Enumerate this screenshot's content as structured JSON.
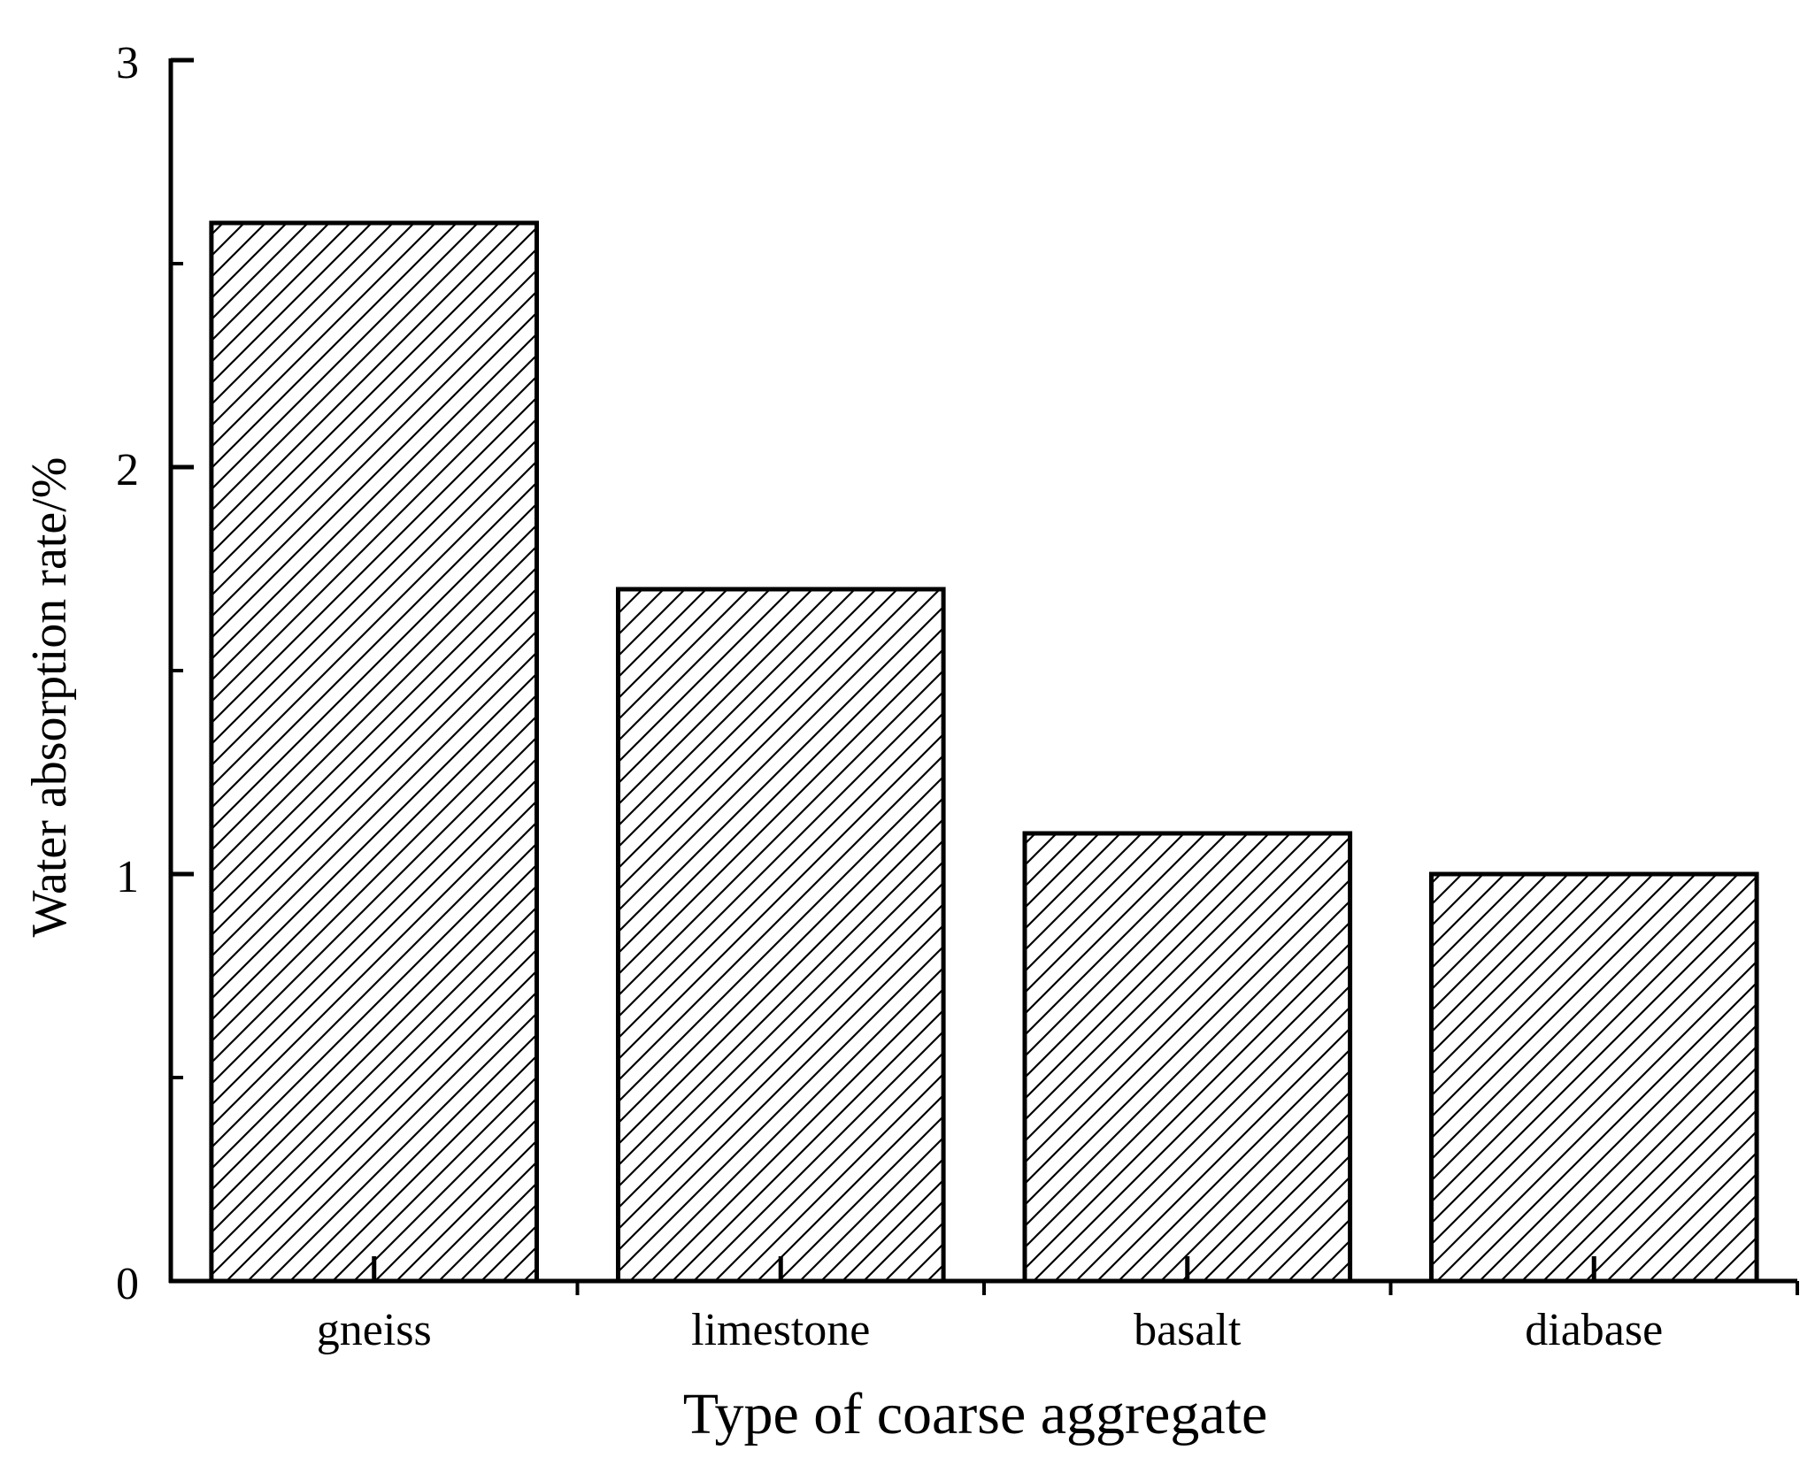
{
  "chart_data": {
    "type": "bar",
    "categories": [
      "gneiss",
      "limestone",
      "basalt",
      "diabase"
    ],
    "values": [
      2.6,
      1.7,
      1.1,
      1.0
    ],
    "title": "",
    "xlabel": "Type of coarse aggregate",
    "ylabel": "Water absorption rate/%",
    "ylim": [
      0,
      3
    ],
    "yticks": [
      0,
      1,
      2,
      3
    ],
    "y_minor_ticks": [
      0.5,
      1.5,
      2.5
    ],
    "grid": false,
    "bar_fill": "hatched",
    "colors": {
      "bar_stroke": "#000000",
      "hatch": "#000000",
      "background": "#ffffff"
    }
  }
}
